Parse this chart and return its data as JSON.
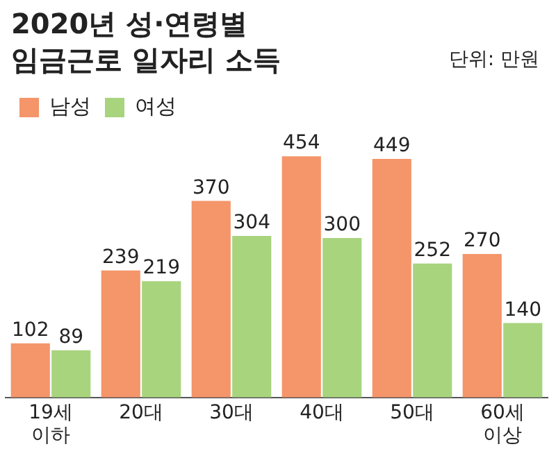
{
  "chart_data": {
    "type": "bar",
    "title": "2020년 성·연령별\n임금근로 일자리 소득",
    "annotations": [
      "단위: 만원"
    ],
    "categories": [
      "19세\n이하",
      "20대",
      "30대",
      "40대",
      "50대",
      "60세\n이상"
    ],
    "series": [
      {
        "name": "남성",
        "color": "#f4956a",
        "values": [
          102,
          239,
          370,
          454,
          449,
          270
        ]
      },
      {
        "name": "여성",
        "color": "#a8d47e",
        "values": [
          89,
          219,
          304,
          300,
          252,
          140
        ]
      }
    ],
    "data_labels": true,
    "legend": "top left",
    "grid": false
  }
}
